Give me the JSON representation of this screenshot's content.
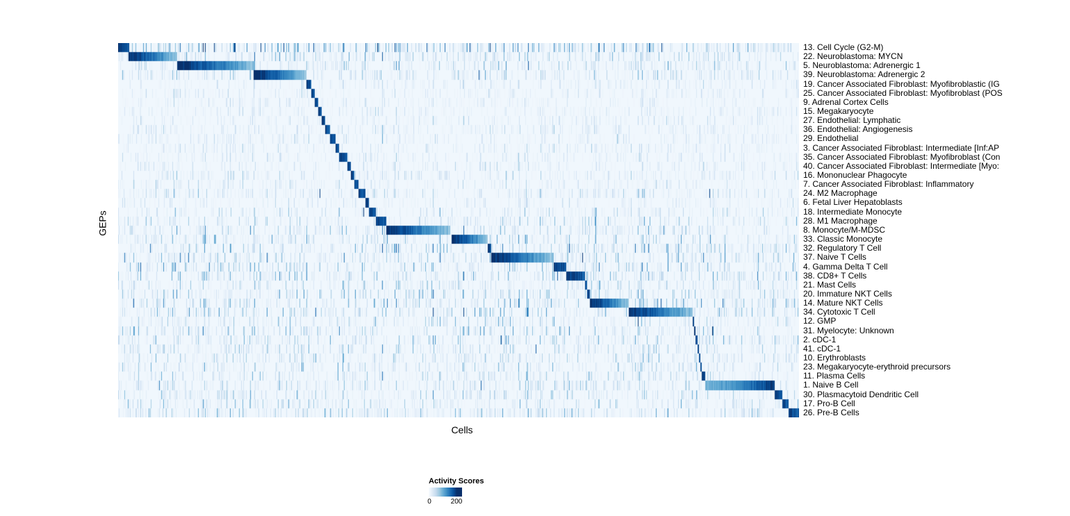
{
  "chart_data": {
    "type": "heatmap",
    "title": "",
    "xlabel": "Cells",
    "ylabel": "GEPs",
    "legend": {
      "title": "Activity Scores",
      "min": 0,
      "max": 200
    },
    "value_range": [
      0,
      200
    ],
    "colormap": {
      "name": "Blues",
      "stops": [
        "#f7fbff",
        "#deebf7",
        "#c6dbef",
        "#9ecae1",
        "#6baed6",
        "#4292c6",
        "#2171b5",
        "#08519c",
        "#08306b"
      ]
    },
    "rows": [
      {
        "label": "13. Cell Cycle (G2-M)",
        "block": [
          0.0,
          0.016
        ],
        "noise": 1.6,
        "spikes": 0.02
      },
      {
        "label": "22. Neuroblastoma: MYCN",
        "block": [
          0.015,
          0.087
        ],
        "noise": 1.1,
        "spikes": 0.006
      },
      {
        "label": "5. Neuroblastoma: Adrenergic 1",
        "block": [
          0.087,
          0.2
        ],
        "noise": 1.0,
        "spikes": 0.002
      },
      {
        "label": "39. Neuroblastoma: Adrenergic 2",
        "block": [
          0.199,
          0.277
        ],
        "noise": 0.9,
        "spikes": 0.002
      },
      {
        "label": "19. Cancer Associated Fibroblast: Myofibroblastic (IG",
        "block": [
          0.277,
          0.284
        ],
        "noise": 0.5,
        "spikes": 0
      },
      {
        "label": "25. Cancer Associated Fibroblast: Myofibroblast (POS",
        "block": [
          0.284,
          0.289
        ],
        "noise": 0.5,
        "spikes": 0
      },
      {
        "label": "9. Adrenal Cortex Cells",
        "block": [
          0.289,
          0.294
        ],
        "noise": 0.5,
        "spikes": 0
      },
      {
        "label": "15. Megakaryocyte",
        "block": [
          0.294,
          0.299
        ],
        "noise": 0.5,
        "spikes": 0.001
      },
      {
        "label": "27. Endothelial: Lymphatic",
        "block": [
          0.299,
          0.304
        ],
        "noise": 0.5,
        "spikes": 0
      },
      {
        "label": "36. Endothelial: Angiogenesis",
        "block": [
          0.304,
          0.311
        ],
        "noise": 0.6,
        "spikes": 0
      },
      {
        "label": "29. Endothelial",
        "block": [
          0.311,
          0.319
        ],
        "noise": 0.6,
        "spikes": 0
      },
      {
        "label": "3. Cancer Associated Fibroblast: Intermediate [Inf:AP",
        "block": [
          0.319,
          0.324
        ],
        "noise": 0.6,
        "spikes": 0
      },
      {
        "label": "35. Cancer Associated Fibroblast: Myofibroblast (Con",
        "block": [
          0.324,
          0.337
        ],
        "noise": 0.6,
        "spikes": 0
      },
      {
        "label": "40. Cancer Associated Fibroblast: Intermediate [Myo:",
        "block": [
          0.337,
          0.342
        ],
        "noise": 0.6,
        "spikes": 0
      },
      {
        "label": "16. Mononuclear Phagocyte",
        "block": [
          0.342,
          0.347
        ],
        "noise": 0.7,
        "spikes": 0
      },
      {
        "label": "7. Cancer Associated Fibroblast: Inflammatory",
        "block": [
          0.347,
          0.353
        ],
        "noise": 0.6,
        "spikes": 0
      },
      {
        "label": "24. M2 Macrophage",
        "block": [
          0.353,
          0.363
        ],
        "noise": 0.8,
        "spikes": 0.001
      },
      {
        "label": "6. Fetal Liver Hepatoblasts",
        "block": [
          0.363,
          0.368
        ],
        "noise": 0.5,
        "spikes": 0
      },
      {
        "label": "18. Intermediate Monocyte",
        "block": [
          0.368,
          0.379
        ],
        "noise": 0.8,
        "spikes": 0.001
      },
      {
        "label": "28. M1 Macrophage",
        "block": [
          0.379,
          0.394
        ],
        "noise": 0.9,
        "spikes": 0.001
      },
      {
        "label": "8. Monocyte/M-MDSC",
        "block": [
          0.394,
          0.488
        ],
        "noise": 1.0,
        "spikes": 0.002
      },
      {
        "label": "33. Classic Monocyte",
        "block": [
          0.49,
          0.543
        ],
        "noise": 1.0,
        "spikes": 0.002
      },
      {
        "label": "32. Regulatory T Cell",
        "block": [
          0.543,
          0.548
        ],
        "noise": 1.3,
        "spikes": 0.001
      },
      {
        "label": "37. Naive T Cells",
        "block": [
          0.548,
          0.64
        ],
        "noise": 1.3,
        "spikes": 0.002
      },
      {
        "label": "4. Gamma Delta T Cell",
        "block": [
          0.64,
          0.658
        ],
        "noise": 1.3,
        "spikes": 0.001
      },
      {
        "label": "38. CD8+ T Cells",
        "block": [
          0.658,
          0.686
        ],
        "noise": 1.2,
        "spikes": 0.001
      },
      {
        "label": "21. Mast Cells",
        "block": [
          0.686,
          0.689
        ],
        "noise": 0.9,
        "spikes": 0.001
      },
      {
        "label": "20. Immature NKT Cells",
        "block": [
          0.689,
          0.693
        ],
        "noise": 1.2,
        "spikes": 0.001
      },
      {
        "label": "14. Mature NKT Cells",
        "block": [
          0.693,
          0.75
        ],
        "noise": 1.3,
        "spikes": 0.002
      },
      {
        "label": "34. Cytotoxic T Cell",
        "block": [
          0.75,
          0.844
        ],
        "noise": 1.3,
        "spikes": 0.002
      },
      {
        "label": "12. GMP",
        "block": [
          0.844,
          0.846
        ],
        "noise": 0.9,
        "spikes": 0.001
      },
      {
        "label": "31. Myelocyte: Unknown",
        "block": [
          0.846,
          0.848
        ],
        "noise": 1.1,
        "spikes": 0.001
      },
      {
        "label": "2. cDC-1",
        "block": [
          0.848,
          0.851
        ],
        "noise": 1.0,
        "spikes": 0.002
      },
      {
        "label": "41. cDC-1",
        "block": [
          0.851,
          0.853
        ],
        "noise": 0.9,
        "spikes": 0.001
      },
      {
        "label": "10. Erythroblasts",
        "block": [
          0.853,
          0.855
        ],
        "noise": 0.9,
        "spikes": 0.001
      },
      {
        "label": "23. Megakaryocyte-erythroid precursors",
        "block": [
          0.855,
          0.857
        ],
        "noise": 1.0,
        "spikes": 0.001
      },
      {
        "label": "11. Plasma Cells",
        "block": [
          0.857,
          0.862
        ],
        "noise": 0.9,
        "spikes": 0.001
      },
      {
        "label": "1. Naive B Cell",
        "block": [
          0.862,
          0.964
        ],
        "noise": 0.9,
        "spikes": 0.002,
        "reverse": true
      },
      {
        "label": "30. Plasmacytoid Dendritic Cell",
        "block": [
          0.964,
          0.975
        ],
        "noise": 0.9,
        "spikes": 0.001
      },
      {
        "label": "17. Pro-B Cell",
        "block": [
          0.975,
          0.985
        ],
        "noise": 0.9,
        "spikes": 0.001
      },
      {
        "label": "26. Pre-B Cells",
        "block": [
          0.985,
          1.0
        ],
        "noise": 1.0,
        "spikes": 0.001
      }
    ]
  }
}
